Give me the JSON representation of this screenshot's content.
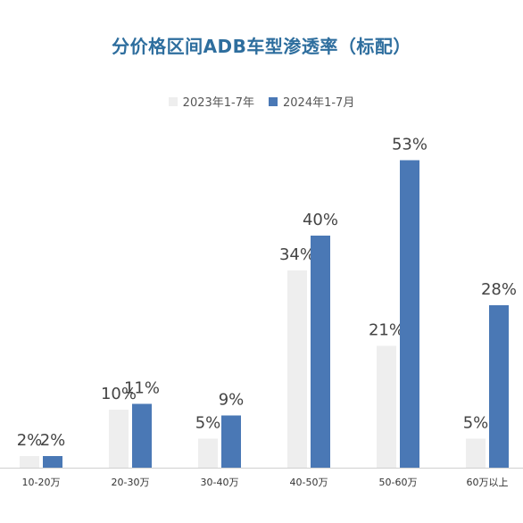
{
  "chart_data": {
    "type": "bar",
    "title": "分价格区间ADB车型渗透率（标配）",
    "categories": [
      "10-20万",
      "20-30万",
      "30-40万",
      "40-50万",
      "50-60万",
      "60万以上"
    ],
    "series": [
      {
        "name": "2023年1-7年",
        "values": [
          2,
          10,
          5,
          34,
          21,
          5
        ],
        "labels": [
          "2%",
          "10%",
          "5%",
          "34%",
          "21%",
          "5%"
        ],
        "color": "#eeeeee"
      },
      {
        "name": "2024年1-7月",
        "values": [
          2,
          11,
          9,
          40,
          53,
          28
        ],
        "labels": [
          "2%",
          "11%",
          "9%",
          "40%",
          "53%",
          "28%"
        ],
        "color": "#4a78b5"
      }
    ],
    "ylim": [
      0,
      60
    ],
    "grid": false,
    "legend_position": "top-center"
  }
}
